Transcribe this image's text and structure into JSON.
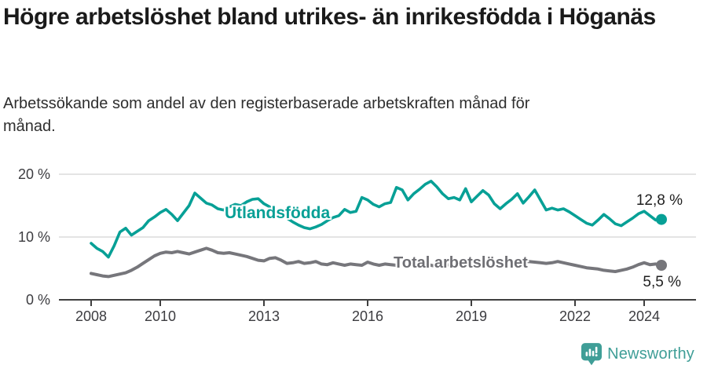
{
  "header": {
    "title": "Högre arbetslöshet bland utrikes- än inrikesfödda i Höganäs",
    "subtitle": "Arbetssökande som andel av den registerbaserade arbetskraften månad för månad."
  },
  "footer": {
    "brand": "Newsworthy"
  },
  "colors": {
    "foreign_born": "#07a096",
    "total": "#76767b",
    "grid": "#dcdcdc",
    "axis": "#3f3f3f",
    "logo_teal": "#3f9e97"
  },
  "chart_data": {
    "type": "line",
    "unit": "%",
    "ylim": [
      0,
      20
    ],
    "x_start": 2008.0,
    "x_step": 0.1666667,
    "x_end": 2024.5,
    "grid": "horizontal gridlines at 10 and 20",
    "y_ticks": [
      "0 %",
      "10 %",
      "20 %"
    ],
    "x_ticks": [
      "2008",
      "2010",
      "2013",
      "2016",
      "2019",
      "2022",
      "2024"
    ],
    "series": [
      {
        "name": "Utlandsfödda",
        "color": "#07a096",
        "end_label": "12,8 %",
        "end_value": 12.8,
        "values": [
          9.0,
          8.2,
          7.7,
          6.8,
          8.6,
          10.8,
          11.4,
          10.3,
          10.9,
          11.5,
          12.6,
          13.2,
          13.9,
          14.4,
          13.6,
          12.6,
          13.8,
          15.0,
          17.0,
          16.2,
          15.4,
          15.1,
          14.5,
          14.3,
          14.8,
          15.2,
          15.0,
          15.6,
          16.0,
          16.1,
          15.3,
          14.8,
          14.2,
          13.6,
          13.0,
          12.4,
          11.9,
          11.5,
          11.3,
          11.6,
          12.0,
          12.6,
          13.1,
          13.4,
          14.4,
          13.9,
          14.1,
          16.3,
          15.9,
          15.2,
          14.8,
          15.3,
          15.5,
          17.9,
          17.5,
          15.9,
          16.9,
          17.6,
          18.4,
          18.9,
          18.0,
          16.9,
          16.1,
          16.3,
          15.9,
          17.7,
          15.6,
          16.5,
          17.4,
          16.7,
          15.3,
          14.5,
          15.3,
          16.0,
          16.9,
          15.4,
          16.4,
          17.5,
          15.9,
          14.3,
          14.6,
          14.3,
          14.5,
          14.0,
          13.4,
          12.8,
          12.2,
          11.9,
          12.7,
          13.6,
          12.9,
          12.1,
          11.8,
          12.4,
          13.0,
          13.7,
          14.1,
          13.4,
          12.7,
          12.8
        ]
      },
      {
        "name": "Total arbetslöshet",
        "color": "#76767b",
        "end_label": "5,5 %",
        "end_value": 5.5,
        "values": [
          4.2,
          4.0,
          3.8,
          3.7,
          3.9,
          4.1,
          4.3,
          4.7,
          5.2,
          5.8,
          6.4,
          7.0,
          7.4,
          7.6,
          7.5,
          7.7,
          7.5,
          7.3,
          7.6,
          7.9,
          8.2,
          7.9,
          7.5,
          7.4,
          7.5,
          7.3,
          7.1,
          6.9,
          6.6,
          6.3,
          6.2,
          6.6,
          6.7,
          6.3,
          5.8,
          5.9,
          6.1,
          5.8,
          5.9,
          6.1,
          5.7,
          5.6,
          5.9,
          5.7,
          5.5,
          5.7,
          5.6,
          5.5,
          6.0,
          5.7,
          5.5,
          5.7,
          5.6,
          5.5,
          5.7,
          5.5,
          5.4,
          5.6,
          5.8,
          5.5,
          5.3,
          5.5,
          5.6,
          5.4,
          5.3,
          5.5,
          5.4,
          5.6,
          5.8,
          5.6,
          5.4,
          5.3,
          5.5,
          5.9,
          6.2,
          6.0,
          6.1,
          6.0,
          5.9,
          5.8,
          5.9,
          6.1,
          5.9,
          5.7,
          5.5,
          5.3,
          5.1,
          5.0,
          4.9,
          4.7,
          4.6,
          4.5,
          4.7,
          4.9,
          5.2,
          5.6,
          5.9,
          5.6,
          5.7,
          5.5
        ]
      }
    ]
  }
}
